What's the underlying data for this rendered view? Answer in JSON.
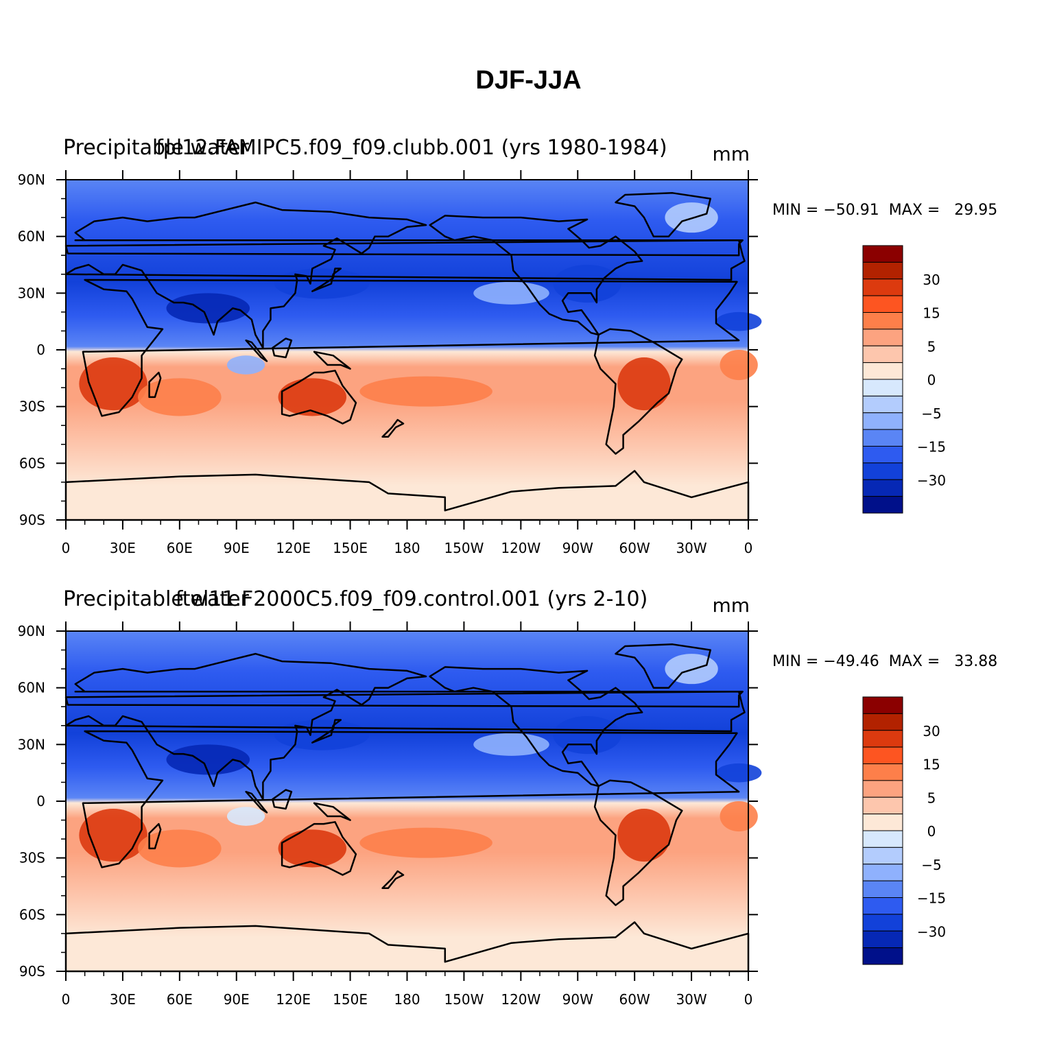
{
  "figure": {
    "title": "DJF-JJA"
  },
  "panels": [
    {
      "title_left": "Precipitable water",
      "title_center": "fpl12.FAMIPC5.f09_f09.clubb.001 (yrs 1980-1984)",
      "title_right": "mm",
      "min_label": "MIN =",
      "min_value": "−50.91",
      "max_label": "MAX =",
      "max_value": "29.95"
    },
    {
      "title_left": "Precipitable water",
      "title_center": "ftel11.F2000C5.f09_f09.control.001 (yrs 2-10)",
      "title_right": "mm",
      "min_label": "MIN =",
      "min_value": "−49.46",
      "max_label": "MAX =",
      "max_value": "33.88"
    }
  ],
  "axes": {
    "x_ticks": [
      "0",
      "30E",
      "60E",
      "90E",
      "120E",
      "150E",
      "180",
      "150W",
      "120W",
      "90W",
      "60W",
      "30W",
      "0"
    ],
    "y_ticks": [
      "90N",
      "60N",
      "30N",
      "0",
      "30S",
      "60S",
      "90S"
    ]
  },
  "colorbar": {
    "colors": [
      "#8b0000",
      "#b22200",
      "#dc3a0f",
      "#fd5521",
      "#fd7f4a",
      "#fca380",
      "#fdc6ad",
      "#fde8d7",
      "#d7e8fd",
      "#b3ccfd",
      "#8fb1fd",
      "#5a85f5",
      "#2e5bf0",
      "#1241d9",
      "#0628b5",
      "#00108a"
    ],
    "labels": [
      "30",
      "15",
      "5",
      "0",
      "−5",
      "−15",
      "−30"
    ]
  },
  "colors": {
    "background": "#ffffff",
    "ocean_north": "#4f80ef",
    "ocean_south": "#fdc6ad",
    "coastline": "#000000"
  }
}
